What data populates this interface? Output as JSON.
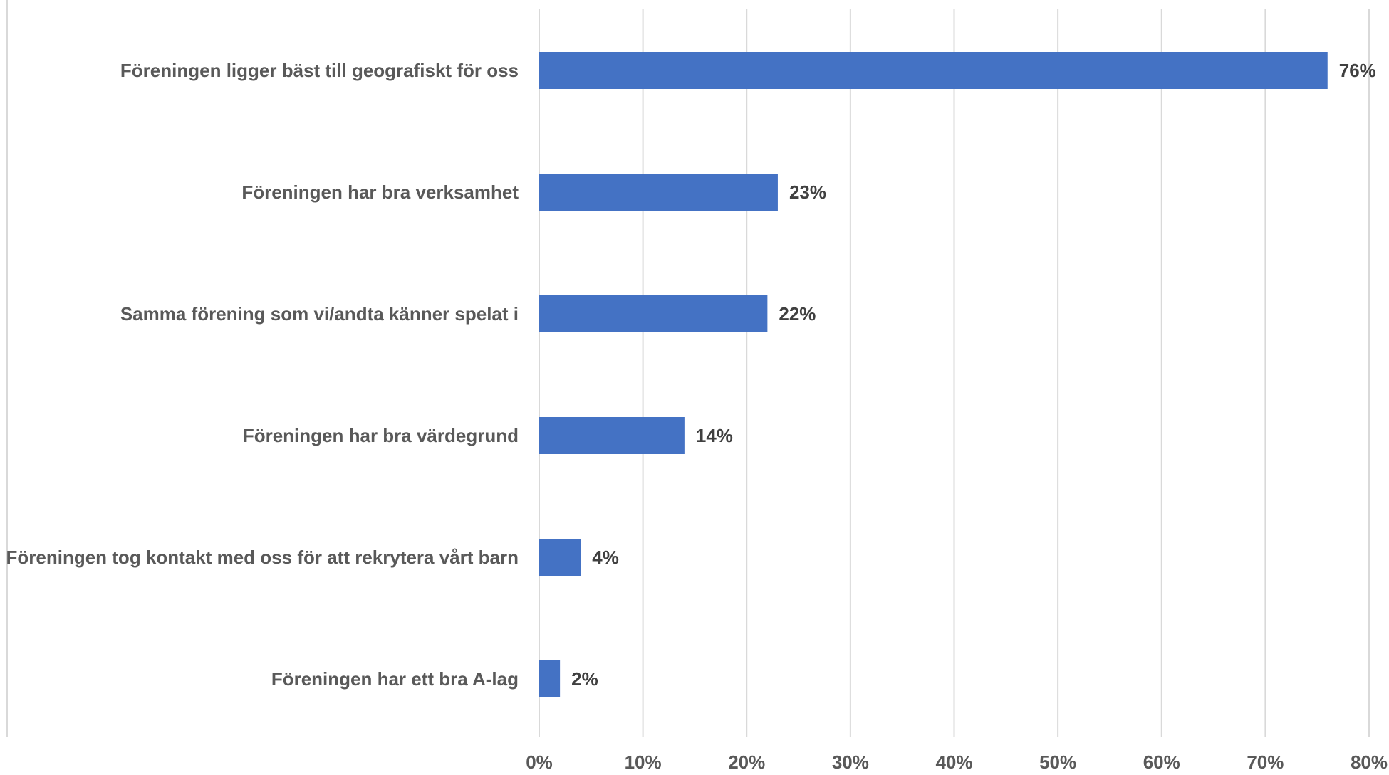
{
  "chart_data": {
    "type": "bar",
    "orientation": "horizontal",
    "categories": [
      "Föreningen ligger bäst till geografiskt för oss",
      "Föreningen har bra verksamhet",
      "Samma förening som vi/andta känner spelat i",
      "Föreningen har bra värdegrund",
      "Föreningen tog kontakt med oss för att rekrytera vårt barn",
      "Föreningen har ett bra A-lag"
    ],
    "values": [
      76,
      23,
      22,
      14,
      4,
      2
    ],
    "data_labels": [
      "76%",
      "23%",
      "22%",
      "14%",
      "4%",
      "2%"
    ],
    "xlim": [
      0,
      80
    ],
    "x_ticks": [
      0,
      10,
      20,
      30,
      40,
      50,
      60,
      70,
      80
    ],
    "x_tick_labels": [
      "0%",
      "10%",
      "20%",
      "30%",
      "40%",
      "50%",
      "60%",
      "70%",
      "80%"
    ],
    "title": "",
    "xlabel": "",
    "ylabel": "",
    "grid": "vertical",
    "legend": "none",
    "bar_color": "#4472C4",
    "grid_color": "#D9D9D9",
    "text_color": "#595959"
  }
}
